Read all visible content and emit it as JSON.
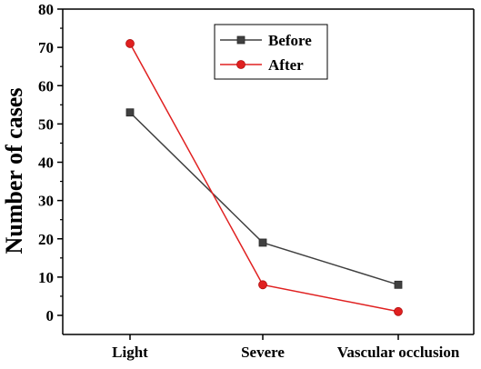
{
  "chart_data": {
    "type": "line",
    "title": "",
    "xlabel": "",
    "ylabel": "Number of cases",
    "categories": [
      "Light",
      "Severe",
      "Vascular occlusion"
    ],
    "ylim": [
      0,
      80
    ],
    "yticks": [
      0,
      10,
      20,
      30,
      40,
      50,
      60,
      70,
      80
    ],
    "grid": false,
    "legend_position": "top-right",
    "series": [
      {
        "name": "Before",
        "values": [
          53,
          19,
          8
        ],
        "color": "#404040",
        "marker": "square"
      },
      {
        "name": "After",
        "values": [
          71,
          8,
          1
        ],
        "color": "#e02020",
        "marker": "circle"
      }
    ]
  }
}
